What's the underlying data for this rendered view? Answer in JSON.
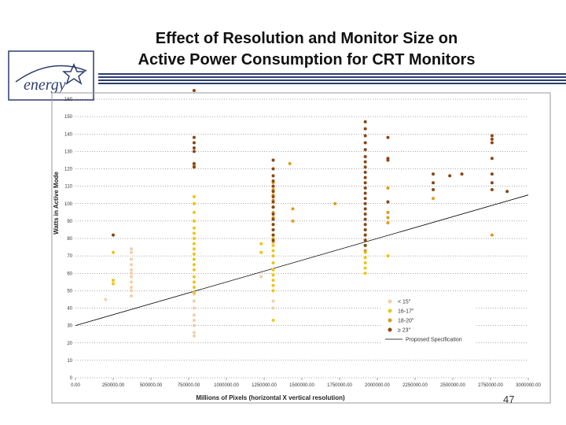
{
  "slide": {
    "title_line1": "Effect of Resolution and Monitor Size on",
    "title_line2": "Active Power Consumption for CRT Monitors",
    "page_number": "47"
  },
  "logo": {
    "text": "energy"
  },
  "chart_data": {
    "type": "scatter",
    "xlabel": "Millions of Pixels (horizontal X vertical resolution)",
    "ylabel": "Watts in Active Mode",
    "xlim": [
      0,
      3000000
    ],
    "ylim": [
      0,
      160
    ],
    "x_ticks": [
      "0.00",
      "250000.00",
      "500000.00",
      "750000.00",
      "1000000.00",
      "1250000.00",
      "1500000.00",
      "1750000.00",
      "2000000.00",
      "2250000.00",
      "2500000.00",
      "2750000.00",
      "3000000.00"
    ],
    "x_tick_values": [
      0,
      250000,
      500000,
      750000,
      1000000,
      1250000,
      1500000,
      1750000,
      2000000,
      2250000,
      2500000,
      2750000,
      3000000
    ],
    "y_ticks": [
      0,
      10,
      20,
      30,
      40,
      50,
      60,
      70,
      80,
      90,
      100,
      110,
      120,
      130,
      140,
      150,
      160
    ],
    "grid": true,
    "legend_position": "bottom-right",
    "series": [
      {
        "name": "< 15\"",
        "color": "#f2cfa8",
        "points": [
          [
            200000,
            45
          ],
          [
            370000,
            60
          ],
          [
            370000,
            55
          ],
          [
            370000,
            50
          ],
          [
            370000,
            65
          ],
          [
            370000,
            72
          ],
          [
            370000,
            74
          ],
          [
            370000,
            68
          ],
          [
            370000,
            62
          ],
          [
            370000,
            58
          ],
          [
            370000,
            52
          ],
          [
            370000,
            47
          ],
          [
            786000,
            24
          ],
          [
            786000,
            26
          ],
          [
            786000,
            30
          ],
          [
            786000,
            33
          ],
          [
            786000,
            36
          ],
          [
            786000,
            40
          ],
          [
            786000,
            44
          ],
          [
            786000,
            48
          ],
          [
            786000,
            52
          ],
          [
            1310000,
            40
          ],
          [
            1310000,
            44
          ],
          [
            1230000,
            58
          ]
        ]
      },
      {
        "name": "16-17\"",
        "color": "#f0c419",
        "points": [
          [
            250000,
            72
          ],
          [
            250000,
            56
          ],
          [
            250000,
            54
          ],
          [
            786000,
            104
          ],
          [
            786000,
            100
          ],
          [
            786000,
            95
          ],
          [
            786000,
            90
          ],
          [
            786000,
            86
          ],
          [
            786000,
            83
          ],
          [
            786000,
            80
          ],
          [
            786000,
            77
          ],
          [
            786000,
            74
          ],
          [
            786000,
            71
          ],
          [
            786000,
            68
          ],
          [
            786000,
            65
          ],
          [
            786000,
            62
          ],
          [
            786000,
            58
          ],
          [
            786000,
            55
          ],
          [
            786000,
            52
          ],
          [
            786000,
            49
          ],
          [
            1230000,
            77
          ],
          [
            1230000,
            72
          ],
          [
            1310000,
            33
          ],
          [
            1310000,
            50
          ],
          [
            1310000,
            53
          ],
          [
            1310000,
            56
          ],
          [
            1310000,
            59
          ],
          [
            1310000,
            62
          ],
          [
            1310000,
            66
          ],
          [
            1310000,
            70
          ],
          [
            1310000,
            73
          ],
          [
            1310000,
            76
          ],
          [
            1310000,
            80
          ],
          [
            1920000,
            60
          ],
          [
            1920000,
            63
          ],
          [
            1920000,
            66
          ],
          [
            1920000,
            69
          ],
          [
            1920000,
            72
          ],
          [
            2070000,
            70
          ]
        ]
      },
      {
        "name": "18-20\"",
        "color": "#e09b1a",
        "points": [
          [
            786000,
            121
          ],
          [
            786000,
            122
          ],
          [
            1310000,
            112
          ],
          [
            1310000,
            108
          ],
          [
            1310000,
            105
          ],
          [
            1310000,
            102
          ],
          [
            1310000,
            98
          ],
          [
            1310000,
            95
          ],
          [
            1310000,
            92
          ],
          [
            1310000,
            88
          ],
          [
            1310000,
            85
          ],
          [
            1310000,
            82
          ],
          [
            1310000,
            78
          ],
          [
            1420000,
            123
          ],
          [
            1440000,
            97
          ],
          [
            1440000,
            90
          ],
          [
            1720000,
            100
          ],
          [
            1920000,
            82
          ],
          [
            1920000,
            79
          ],
          [
            1920000,
            76
          ],
          [
            1920000,
            73
          ],
          [
            2070000,
            109
          ],
          [
            2070000,
            92
          ],
          [
            2070000,
            89
          ],
          [
            2070000,
            95
          ],
          [
            2370000,
            103
          ],
          [
            2760000,
            82
          ]
        ]
      },
      {
        "name": "≥ 23\"",
        "color": "#8b4513",
        "points": [
          [
            250000,
            82
          ],
          [
            786000,
            165
          ],
          [
            786000,
            138
          ],
          [
            786000,
            135
          ],
          [
            786000,
            132
          ],
          [
            786000,
            130
          ],
          [
            786000,
            123
          ],
          [
            786000,
            121
          ],
          [
            1310000,
            125
          ],
          [
            1310000,
            120
          ],
          [
            1310000,
            116
          ],
          [
            1310000,
            113
          ],
          [
            1310000,
            110
          ],
          [
            1310000,
            107
          ],
          [
            1310000,
            104
          ],
          [
            1310000,
            101
          ],
          [
            1310000,
            98
          ],
          [
            1310000,
            94
          ],
          [
            1310000,
            91
          ],
          [
            1310000,
            88
          ],
          [
            1310000,
            85
          ],
          [
            1310000,
            82
          ],
          [
            1310000,
            79
          ],
          [
            1920000,
            147
          ],
          [
            1920000,
            143
          ],
          [
            1920000,
            139
          ],
          [
            1920000,
            135
          ],
          [
            1920000,
            131
          ],
          [
            1920000,
            127
          ],
          [
            1920000,
            124
          ],
          [
            1920000,
            121
          ],
          [
            1920000,
            118
          ],
          [
            1920000,
            115
          ],
          [
            1920000,
            112
          ],
          [
            1920000,
            109
          ],
          [
            1920000,
            106
          ],
          [
            1920000,
            103
          ],
          [
            1920000,
            100
          ],
          [
            1920000,
            97
          ],
          [
            1920000,
            94
          ],
          [
            1920000,
            91
          ],
          [
            1920000,
            88
          ],
          [
            1920000,
            85
          ],
          [
            1920000,
            82
          ],
          [
            1920000,
            79
          ],
          [
            1920000,
            76
          ],
          [
            2070000,
            138
          ],
          [
            2070000,
            126
          ],
          [
            2070000,
            125
          ],
          [
            2070000,
            101
          ],
          [
            2370000,
            117
          ],
          [
            2370000,
            112
          ],
          [
            2370000,
            108
          ],
          [
            2480000,
            116
          ],
          [
            2560000,
            117
          ],
          [
            2760000,
            139
          ],
          [
            2760000,
            137
          ],
          [
            2760000,
            135
          ],
          [
            2760000,
            126
          ],
          [
            2760000,
            117
          ],
          [
            2760000,
            112
          ],
          [
            2760000,
            108
          ],
          [
            2860000,
            107
          ]
        ]
      }
    ],
    "trendline": {
      "name": "Proposed Specification",
      "color": "#000000",
      "points": [
        [
          0,
          30
        ],
        [
          3000000,
          105
        ]
      ]
    }
  }
}
